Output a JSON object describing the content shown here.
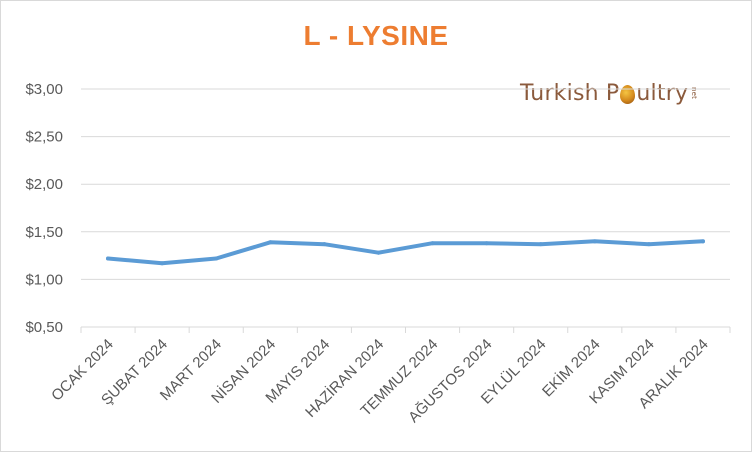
{
  "chart_data": {
    "type": "line",
    "title": "L - LYSINE",
    "categories": [
      "OCAK 2024",
      "ŞUBAT 2024",
      "MART 2024",
      "NİSAN 2024",
      "MAYIS 2024",
      "HAZİRAN 2024",
      "TEMMUZ 2024",
      "AĞUSTOS 2024",
      "EYLÜL 2024",
      "EKİM 2024",
      "KASIM 2024",
      "ARALIK 2024"
    ],
    "series": [
      {
        "values": [
          1.22,
          1.17,
          1.22,
          1.39,
          1.37,
          1.28,
          1.38,
          1.38,
          1.37,
          1.4,
          1.37,
          1.4
        ]
      }
    ],
    "ylim": [
      0.5,
      3.0
    ],
    "yticks": [
      0.5,
      1.0,
      1.5,
      2.0,
      2.5,
      3.0
    ],
    "ytick_labels": [
      "$0,50",
      "$1,00",
      "$1,50",
      "$2,00",
      "$2,50",
      "$3,00"
    ],
    "xlabel": "",
    "ylabel": "",
    "grid": true,
    "colors": {
      "line": "#5b9bd5",
      "title": "#ed7d31",
      "grid": "#d9d9d9",
      "text": "#595959"
    }
  },
  "logo": {
    "text_before": "Turkish P",
    "text_after": "ultry",
    "suffix": "net"
  }
}
